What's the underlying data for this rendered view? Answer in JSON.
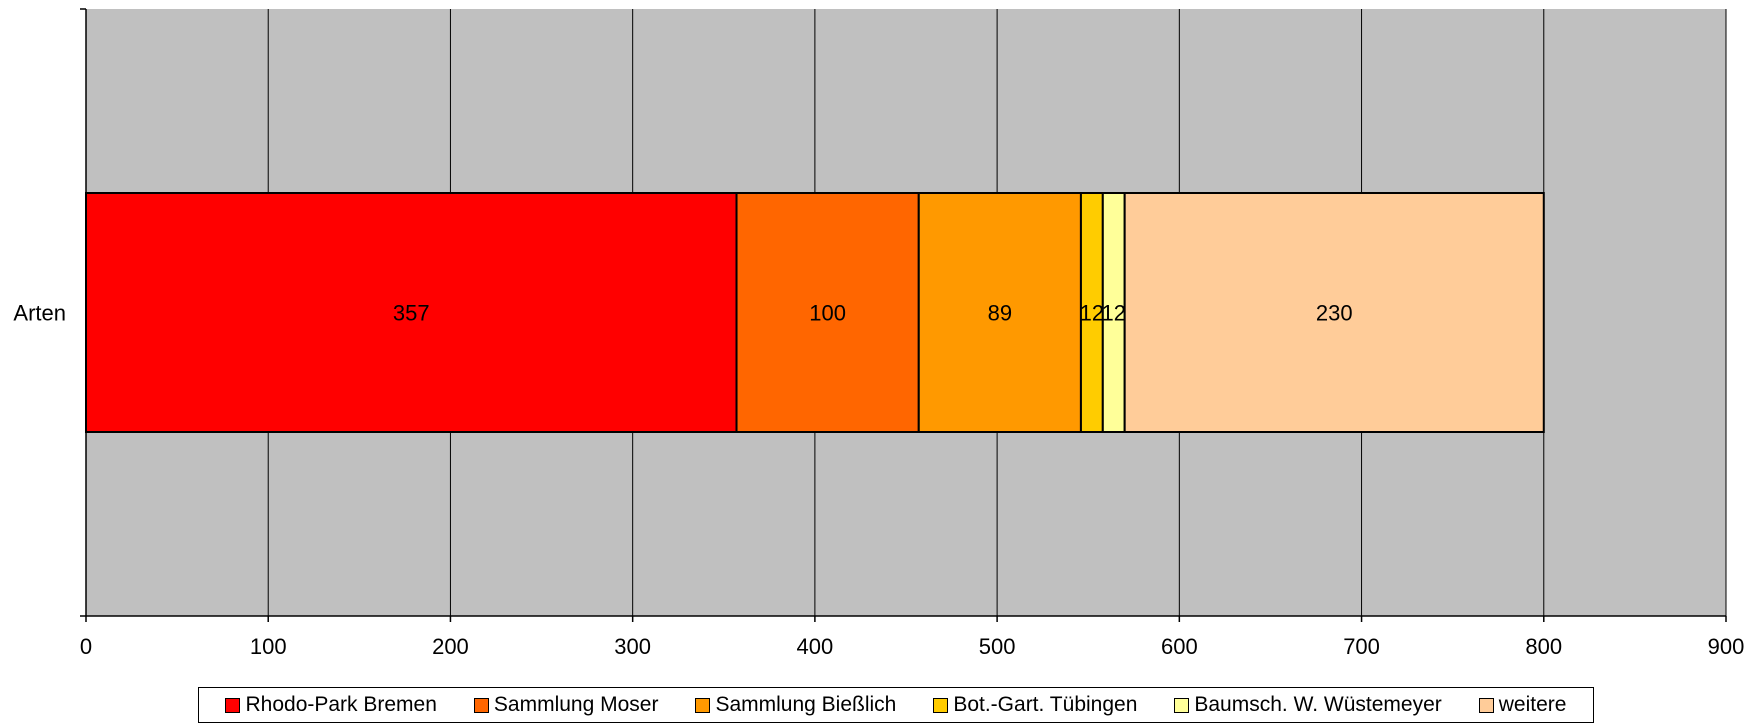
{
  "chart_data": {
    "type": "bar",
    "orientation": "horizontal",
    "stacked": true,
    "categories": [
      "Arten"
    ],
    "series": [
      {
        "name": "Rhodo-Park Bremen",
        "values": [
          357
        ],
        "color": "#ff0000"
      },
      {
        "name": "Sammlung Moser",
        "values": [
          100
        ],
        "color": "#ff6600"
      },
      {
        "name": "Sammlung Bießlich",
        "values": [
          89
        ],
        "color": "#ff9900"
      },
      {
        "name": "Bot.-Gart. Tübingen",
        "values": [
          12
        ],
        "color": "#ffcc00"
      },
      {
        "name": "Baumsch. W. Wüstemeyer",
        "values": [
          12
        ],
        "color": "#ffff99"
      },
      {
        "name": "weitere",
        "values": [
          230
        ],
        "color": "#ffcc99"
      }
    ],
    "xlim": [
      0,
      900
    ],
    "x_ticks": [
      "0",
      "100",
      "200",
      "300",
      "400",
      "500",
      "600",
      "700",
      "800",
      "900"
    ],
    "grid": true,
    "plot_background": "#c0c0c0",
    "legend_position": "bottom"
  }
}
